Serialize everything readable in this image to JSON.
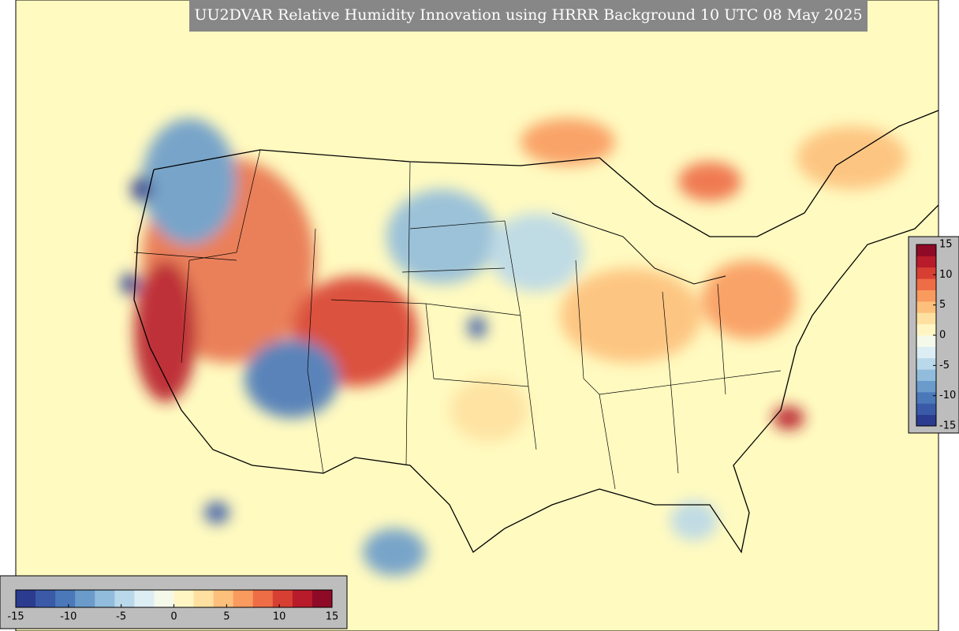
{
  "title": "UU2DVAR Relative Humidity Innovation using HRRR Background 10 UTC 08 May 2025",
  "colorbar": {
    "limits": [
      -15,
      15
    ],
    "ticks": [
      -15,
      -10,
      -5,
      0,
      5,
      10,
      15
    ],
    "colormap": [
      "#2b3b8f",
      "#3a5aa8",
      "#4a78b9",
      "#6a9bcb",
      "#91bcdb",
      "#b9d8e9",
      "#dcedf3",
      "#f4f9ea",
      "#fff6c4",
      "#fee1a0",
      "#fdc07c",
      "#f99a5e",
      "#ee6d46",
      "#d83f33",
      "#b81b2a",
      "#8f0a26"
    ]
  }
}
